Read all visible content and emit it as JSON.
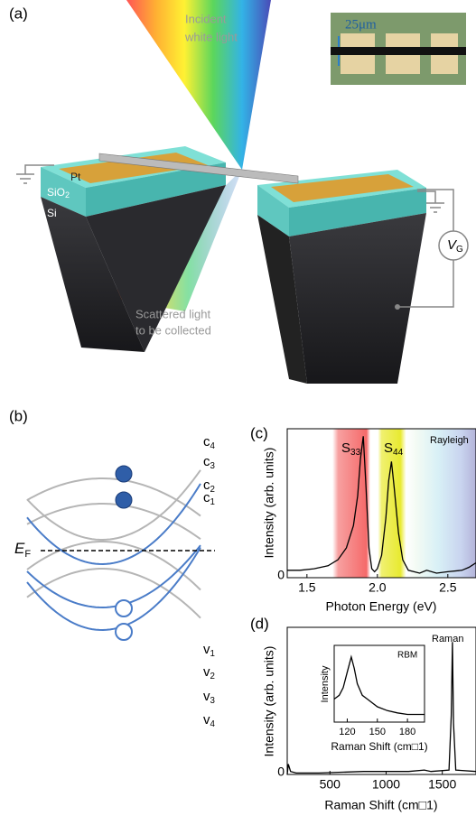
{
  "panel_a": {
    "label": "(a)",
    "incident": [
      "Incident",
      "white light"
    ],
    "scale": "25μm",
    "pt": "Pt",
    "sio2": {
      "main": "SiO",
      "sub": "2"
    },
    "si": "Si",
    "scattered": [
      "Scattered light",
      "to be collected"
    ],
    "gate": {
      "main": "V",
      "sub": "G"
    }
  },
  "panel_b": {
    "label": "(b)",
    "conduction": [
      {
        "main": "c",
        "sub": "4"
      },
      {
        "main": "c",
        "sub": "3"
      },
      {
        "main": "c",
        "sub": "2"
      },
      {
        "main": "c",
        "sub": "1"
      }
    ],
    "fermi": {
      "main": "E",
      "sub": "F"
    },
    "valence": [
      {
        "main": "v",
        "sub": "1"
      },
      {
        "main": "v",
        "sub": "2"
      },
      {
        "main": "v",
        "sub": "3"
      },
      {
        "main": "v",
        "sub": "4"
      }
    ]
  },
  "chart_data": [
    {
      "type": "line",
      "panel_label": "(c)",
      "xlabel": "Photon Energy (eV)",
      "ylabel": "Intensity (arb. units)",
      "peak_labels": [
        {
          "main": "S",
          "sub": "33"
        },
        {
          "main": "S",
          "sub": "44"
        }
      ],
      "annotation": "Rayleigh",
      "x": [
        1.36,
        1.45,
        1.55,
        1.65,
        1.72,
        1.78,
        1.83,
        1.86,
        1.88,
        1.9,
        1.92,
        1.94,
        1.96,
        1.98,
        2.0,
        2.03,
        2.06,
        2.08,
        2.1,
        2.12,
        2.15,
        2.18,
        2.22,
        2.3,
        2.35,
        2.42,
        2.5,
        2.6,
        2.65,
        2.7
      ],
      "series": [
        {
          "color": "#000000",
          "values": [
            0.05,
            0.05,
            0.06,
            0.08,
            0.12,
            0.2,
            0.35,
            0.55,
            0.8,
            0.95,
            0.6,
            0.2,
            0.06,
            0.04,
            0.06,
            0.15,
            0.4,
            0.65,
            0.78,
            0.6,
            0.3,
            0.12,
            0.05,
            0.03,
            0.05,
            0.03,
            0.04,
            0.05,
            0.07,
            0.1
          ]
        }
      ],
      "xlim": [
        1.36,
        2.7
      ],
      "ylim": [
        0,
        1
      ],
      "xticks": [
        1.5,
        {
          "value": 2,
          "label": "2.0"
        },
        2.5
      ],
      "yticks": [
        0
      ]
    },
    {
      "type": "line",
      "panel_label": "(d)",
      "xlabel": "Raman Shift (cm□1)",
      "ylabel": "Intensity (arb. units)",
      "annotation": "Raman",
      "x": [
        120,
        130,
        150,
        200,
        400,
        800,
        1200,
        1340,
        1400,
        1560,
        1580,
        1590,
        1600,
        1620,
        1800
      ],
      "series": [
        {
          "color": "#000000",
          "values": [
            0,
            0.07,
            0.02,
            0.01,
            0.01,
            0.02,
            0.02,
            0.03,
            0.02,
            0.03,
            0.4,
            0.9,
            0.35,
            0.03,
            0.02
          ]
        }
      ],
      "xlim": [
        120,
        1800
      ],
      "ylim": [
        0,
        1
      ],
      "xticks": [
        500,
        1000,
        1500
      ],
      "yticks": [
        0
      ]
    },
    {
      "type": "line",
      "xlabel": "Raman Shift (cm□1)",
      "ylabel": "Intensity",
      "annotation": "RBM",
      "x": [
        107,
        112,
        116,
        120,
        124,
        127,
        130,
        135,
        140,
        150,
        160,
        170,
        180,
        190,
        197
      ],
      "series": [
        {
          "color": "#000000",
          "values": [
            0.3,
            0.35,
            0.45,
            0.65,
            0.85,
            0.7,
            0.5,
            0.35,
            0.3,
            0.2,
            0.15,
            0.12,
            0.1,
            0.1,
            0.1
          ]
        }
      ],
      "xlim": [
        107,
        197
      ],
      "ylim": [
        0,
        1
      ],
      "xticks": [
        120,
        150,
        180
      ]
    }
  ]
}
